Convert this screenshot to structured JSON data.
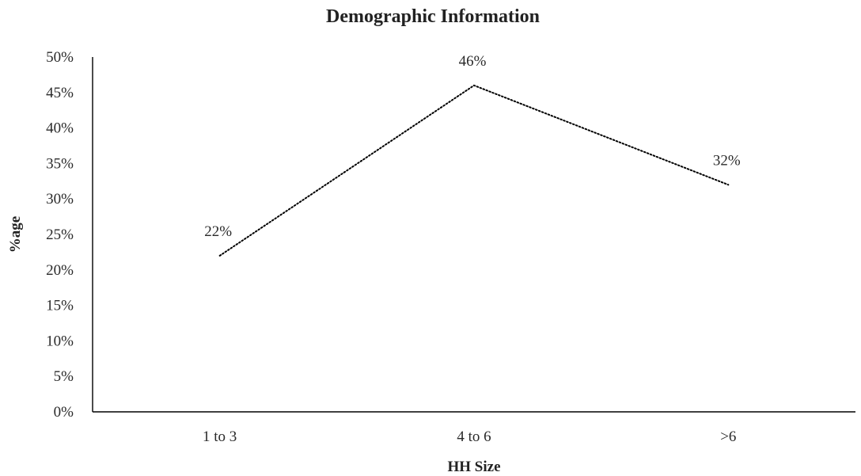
{
  "chart_data": {
    "type": "line",
    "title": "Demographic Information",
    "xlabel": "HH Size",
    "ylabel": "%age",
    "categories": [
      "1 to 3",
      "4 to 6",
      ">6"
    ],
    "values": [
      22,
      46,
      32
    ],
    "data_labels": [
      "22%",
      "46%",
      "32%"
    ],
    "ylim": [
      0,
      50
    ],
    "yticks": [
      0,
      5,
      10,
      15,
      20,
      25,
      30,
      35,
      40,
      45,
      50
    ],
    "ytick_labels": [
      "0%",
      "5%",
      "10%",
      "15%",
      "20%",
      "25%",
      "30%",
      "35%",
      "40%",
      "45%",
      "50%"
    ],
    "grid": false,
    "legend": "none",
    "line_style": "dotted",
    "line_color": "#000000"
  }
}
